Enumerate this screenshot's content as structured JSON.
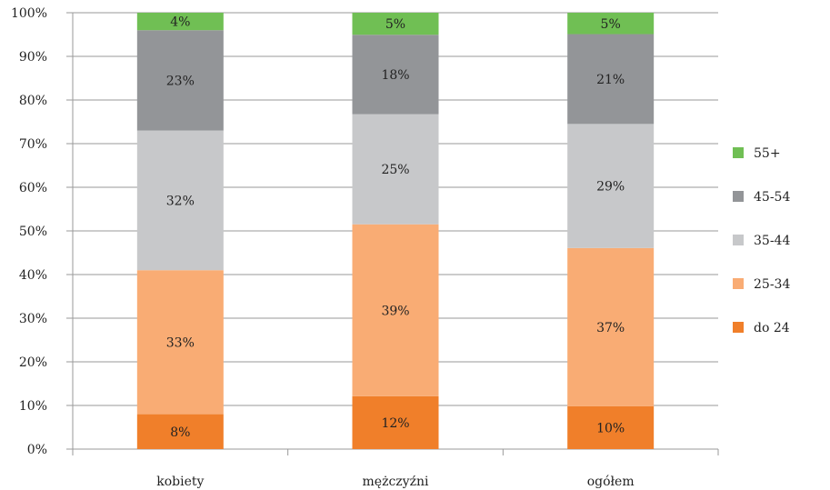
{
  "chart_data": {
    "type": "bar",
    "stacked": true,
    "percent_stacked": true,
    "categories": [
      "kobiety",
      "mężczyźni",
      "ogółem"
    ],
    "series": [
      {
        "name": "do 24",
        "values": [
          8,
          12,
          10
        ],
        "labels": [
          "8%",
          "12%",
          "10%"
        ],
        "color": "#f07f2a"
      },
      {
        "name": "25-34",
        "values": [
          33,
          39,
          37
        ],
        "labels": [
          "33%",
          "39%",
          "37%"
        ],
        "color": "#f9ac74"
      },
      {
        "name": "35-44",
        "values": [
          32,
          25,
          29
        ],
        "labels": [
          "32%",
          "25%",
          "29%"
        ],
        "color": "#c7c8ca"
      },
      {
        "name": "45-54",
        "values": [
          23,
          18,
          21
        ],
        "labels": [
          "23%",
          "18%",
          "21%"
        ],
        "color": "#939598"
      },
      {
        "name": "55+",
        "values": [
          4,
          5,
          5
        ],
        "labels": [
          "4%",
          "5%",
          "5%"
        ],
        "color": "#70bf54"
      }
    ],
    "yticks": [
      "0%",
      "10%",
      "20%",
      "30%",
      "40%",
      "50%",
      "60%",
      "70%",
      "80%",
      "90%",
      "100%"
    ],
    "ylim": [
      0,
      100
    ],
    "grid": true,
    "legend": "right"
  }
}
